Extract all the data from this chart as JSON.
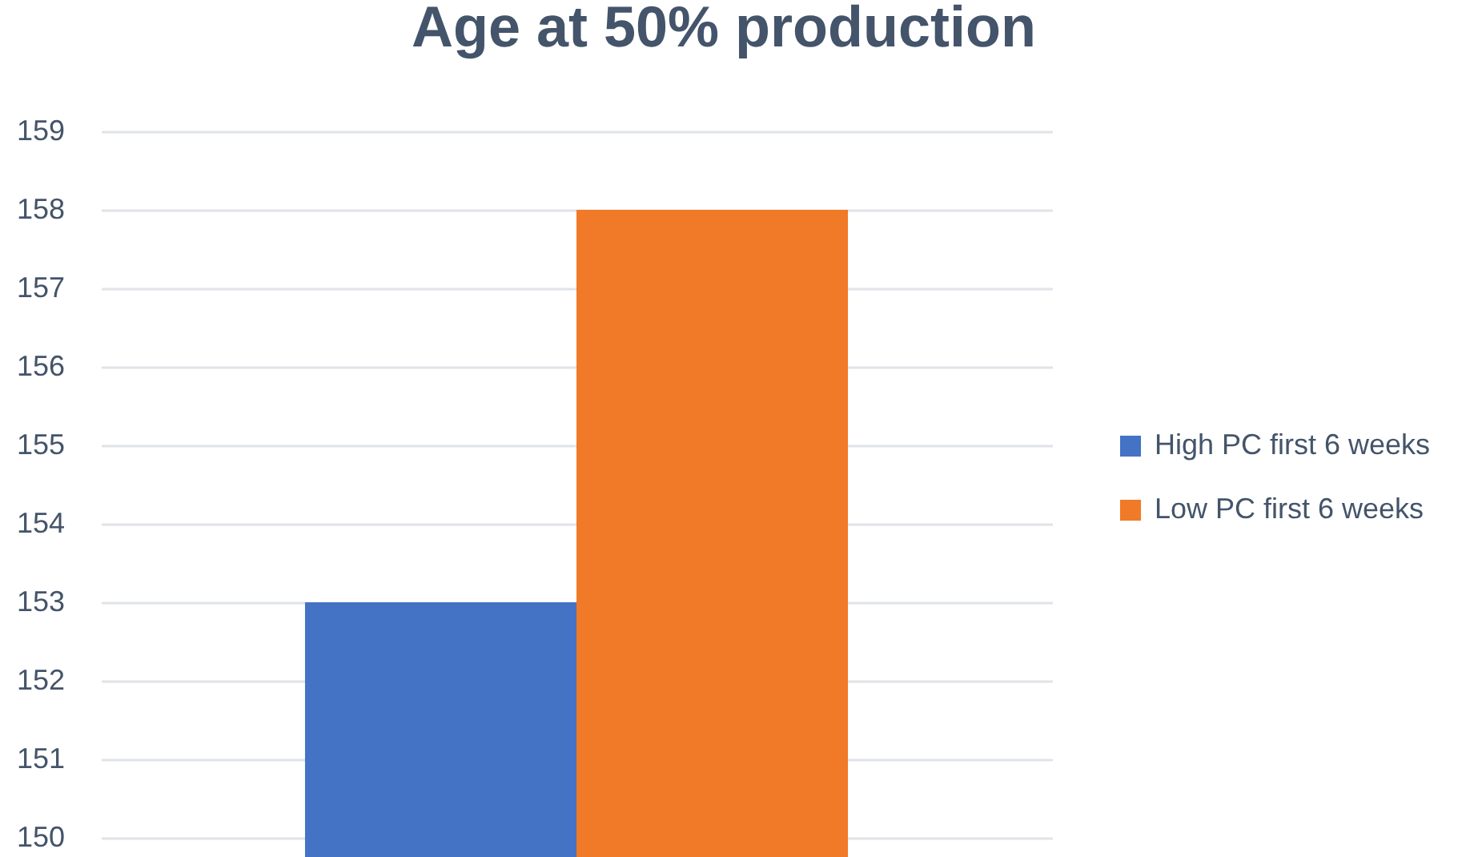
{
  "chart_data": {
    "type": "bar",
    "title": "Age at 50% production",
    "categories": [
      null
    ],
    "series": [
      {
        "name": "High PC first 6 weeks",
        "color": "#4472c4",
        "values": [
          153
        ]
      },
      {
        "name": "Low PC first 6 weeks",
        "color": "#f07a28",
        "values": [
          158
        ]
      }
    ],
    "ylim": [
      150,
      159
    ],
    "yticks": [
      150,
      151,
      152,
      153,
      154,
      155,
      156,
      157,
      158,
      159
    ],
    "grid": "y",
    "legend": "right",
    "tick_labels": "y"
  }
}
